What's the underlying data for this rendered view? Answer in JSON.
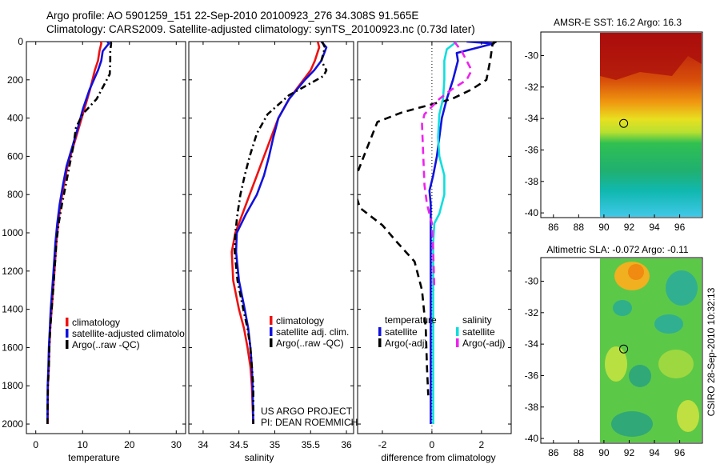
{
  "header": {
    "line1": "Argo profile: AO 5901259_151 22-Sep-2010 20100923_276 34.308S 91.565E",
    "line2": "Climatology: CARS2009. Satellite-adjusted climatology: synTS_20100923.nc (0.73d later)"
  },
  "colors": {
    "red": "#ee1111",
    "blue": "#1111dd",
    "black": "#000000",
    "cyan": "#11dddd",
    "magenta": "#ee22ee"
  },
  "chart_data": [
    {
      "type": "line",
      "xlabel": "temperature",
      "ylabel": "",
      "xlim": [
        -2,
        32
      ],
      "ylim": [
        2050,
        0
      ],
      "xticks": [
        0,
        10,
        20,
        30
      ],
      "yticks": [
        0,
        200,
        400,
        600,
        800,
        1000,
        1200,
        1400,
        1600,
        1800,
        2000
      ],
      "legend": {
        "position": "lower-center",
        "entries": [
          "climatology",
          "satellite-adjusted climatolo",
          "Argo(..raw -QC)"
        ]
      },
      "series": [
        {
          "name": "climatology",
          "color": "red",
          "dash": "solid",
          "x": [
            13.9,
            14.0,
            13.6,
            13.3,
            12.6,
            11.6,
            10.4,
            9.2,
            8.0,
            6.8,
            6.0,
            5.3,
            4.8,
            4.4,
            4.0,
            3.7,
            3.4,
            3.1,
            2.9,
            2.8,
            2.6,
            2.55
          ],
          "depth": [
            0,
            10,
            50,
            100,
            150,
            250,
            350,
            450,
            550,
            650,
            750,
            850,
            950,
            1050,
            1200,
            1300,
            1400,
            1500,
            1600,
            1700,
            1800,
            2000
          ]
        },
        {
          "name": "satellite-adjusted climatolo",
          "color": "blue",
          "dash": "solid",
          "x": [
            15.3,
            15.6,
            14.3,
            14.0,
            13.3,
            11.5,
            10.1,
            9.0,
            7.8,
            6.6,
            5.8,
            5.1,
            4.6,
            4.2,
            3.8,
            3.5,
            3.2,
            3.0,
            2.8,
            2.7,
            2.55,
            2.5
          ],
          "depth": [
            0,
            10,
            50,
            100,
            150,
            250,
            350,
            450,
            550,
            650,
            750,
            850,
            950,
            1050,
            1200,
            1300,
            1400,
            1500,
            1600,
            1700,
            1800,
            2000
          ]
        },
        {
          "name": "Argo(..raw -QC)",
          "color": "black",
          "dash": "dashdot",
          "x": [
            16.0,
            16.1,
            15.9,
            15.9,
            15.8,
            13.0,
            10.0,
            8.6,
            8.0,
            7.2,
            6.4,
            5.6,
            4.9,
            4.4,
            4.0,
            3.7,
            3.4,
            3.1,
            2.9,
            2.8,
            2.6,
            2.5
          ],
          "depth": [
            0,
            10,
            50,
            100,
            170,
            300,
            380,
            450,
            550,
            650,
            750,
            850,
            950,
            1050,
            1200,
            1300,
            1400,
            1500,
            1600,
            1700,
            1800,
            2000
          ]
        }
      ]
    },
    {
      "type": "line",
      "xlabel": "salinity",
      "ylabel": "",
      "xlim": [
        33.8,
        36.1
      ],
      "ylim": [
        2050,
        0
      ],
      "xticks": [
        34,
        34.5,
        35,
        35.5,
        36
      ],
      "xticklabels": [
        "34",
        "34.5",
        "35",
        "35.5",
        "36"
      ],
      "legend": {
        "position": "lower-right",
        "entries": [
          "climatology",
          "satellite adj. clim.",
          "Argo(..raw -QC)"
        ]
      },
      "annotation": [
        "US ARGO PROJECT",
        "PI: DEAN ROEMMICH"
      ],
      "series": [
        {
          "name": "climatology",
          "color": "red",
          "dash": "solid",
          "x": [
            35.6,
            35.62,
            35.56,
            35.5,
            35.4,
            35.2,
            35.05,
            34.95,
            34.85,
            34.75,
            34.65,
            34.55,
            34.45,
            34.4,
            34.42,
            34.5,
            34.57,
            34.62,
            34.66,
            34.68,
            34.7
          ],
          "depth": [
            0,
            30,
            100,
            150,
            200,
            300,
            400,
            500,
            600,
            700,
            800,
            900,
            1000,
            1100,
            1250,
            1400,
            1500,
            1600,
            1700,
            1800,
            2000
          ]
        },
        {
          "name": "satellite adj. clim.",
          "color": "blue",
          "dash": "solid",
          "x": [
            35.65,
            35.72,
            35.65,
            35.55,
            35.42,
            35.2,
            35.05,
            34.98,
            34.92,
            34.85,
            34.75,
            34.6,
            34.47,
            34.46,
            34.5,
            34.58,
            34.63,
            34.66,
            34.68,
            34.69,
            34.7
          ],
          "depth": [
            0,
            30,
            100,
            150,
            200,
            300,
            400,
            500,
            600,
            700,
            800,
            900,
            1000,
            1100,
            1250,
            1400,
            1500,
            1600,
            1700,
            1800,
            2000
          ]
        },
        {
          "name": "Argo(..raw -QC)",
          "color": "black",
          "dash": "dashdot",
          "x": [
            35.66,
            35.7,
            35.65,
            35.72,
            35.68,
            35.2,
            34.9,
            34.75,
            34.65,
            34.58,
            34.52,
            34.48,
            34.45,
            34.44,
            34.48,
            34.56,
            34.62,
            34.66,
            34.68,
            34.7,
            34.7
          ],
          "depth": [
            0,
            30,
            100,
            150,
            180,
            280,
            380,
            480,
            600,
            700,
            800,
            900,
            1000,
            1100,
            1250,
            1400,
            1500,
            1600,
            1700,
            1800,
            2000
          ]
        }
      ]
    },
    {
      "type": "line",
      "xlabel": "difference from climatology",
      "ylabel": "",
      "xlim": [
        -3.0,
        3.2
      ],
      "ylim": [
        2050,
        0
      ],
      "xticks": [
        -2,
        0,
        2
      ],
      "zero_line": "dotted",
      "legend": {
        "position": "lower",
        "groups": [
          {
            "title": "temperature",
            "entries": [
              "satellite",
              "Argo(-adj)"
            ]
          },
          {
            "title": "salinity",
            "entries": [
              "satellite",
              "Argo(-adj)"
            ]
          }
        ]
      },
      "series": [
        {
          "name": "temperature satellite",
          "color": "blue",
          "dash": "solid",
          "x": [
            1.4,
            2.5,
            1.0,
            1.05,
            0.85,
            0.6,
            0.4,
            0.3,
            0.2,
            0.05,
            -0.1,
            -0.05,
            -0.05,
            -0.05,
            -0.05,
            -0.05,
            -0.05,
            -0.05
          ],
          "depth": [
            0,
            10,
            60,
            100,
            200,
            300,
            400,
            500,
            600,
            700,
            780,
            850,
            1000,
            1200,
            1400,
            1600,
            1800,
            2000
          ]
        },
        {
          "name": "temperature Argo(-adj)",
          "color": "black",
          "dash": "dashed",
          "x": [
            2.6,
            2.45,
            2.35,
            2.2,
            1.6,
            0.8,
            -1.2,
            -2.2,
            -2.6,
            -3.2,
            -2.9,
            -2.0,
            -1.4,
            -0.7,
            -0.4,
            -0.25,
            -0.2,
            -0.15
          ],
          "depth": [
            0,
            10,
            100,
            200,
            250,
            300,
            370,
            420,
            550,
            750,
            870,
            960,
            1050,
            1150,
            1300,
            1500,
            1700,
            1850
          ]
        },
        {
          "name": "salinity satellite",
          "color": "cyan",
          "dash": "solid",
          "x": [
            1.0,
            0.6,
            0.5,
            0.5,
            0.45,
            0.3,
            0.25,
            0.3,
            0.5,
            0.5,
            0.3,
            0.1,
            0.05,
            0.05,
            0.05,
            0.05,
            0.05,
            0.05
          ],
          "depth": [
            0,
            40,
            100,
            200,
            300,
            380,
            500,
            600,
            700,
            800,
            900,
            950,
            1050,
            1200,
            1400,
            1600,
            1800,
            2000
          ]
        },
        {
          "name": "salinity Argo(-adj)",
          "color": "magenta",
          "dash": "dashed",
          "x": [
            0.9,
            1.2,
            1.6,
            1.4,
            0.8,
            0.3,
            -0.3,
            -0.4,
            -0.35,
            -0.3,
            -0.2,
            0.0,
            0.05,
            0.1
          ],
          "depth": [
            0,
            50,
            150,
            200,
            250,
            300,
            380,
            430,
            600,
            750,
            850,
            950,
            1100,
            1300
          ]
        }
      ]
    },
    {
      "type": "heatmap",
      "title": "AMSR-E SST: 16.2 Argo: 16.3",
      "xlim": [
        85,
        97.8
      ],
      "ylim": [
        -40.3,
        -28.5
      ],
      "xticks": [
        86,
        88,
        90,
        92,
        94,
        96
      ],
      "yticks": [
        -30,
        -32,
        -34,
        -36,
        -38,
        -40
      ],
      "data_x_range": [
        90,
        97.8
      ],
      "marker": {
        "lon": 91.565,
        "lat": -34.308
      }
    },
    {
      "type": "heatmap",
      "title": "Altimetric SLA: -0.072 Argo: -0.11",
      "xlim": [
        85,
        97.8
      ],
      "ylim": [
        -40.3,
        -28.5
      ],
      "xticks": [
        86,
        88,
        90,
        92,
        94,
        96
      ],
      "yticks": [
        -30,
        -32,
        -34,
        -36,
        -38,
        -40
      ],
      "data_x_range": [
        90,
        97.8
      ],
      "marker": {
        "lon": 91.565,
        "lat": -34.308
      },
      "side_label": "CSIRO 28-Sep-2010 10:32:13"
    }
  ]
}
